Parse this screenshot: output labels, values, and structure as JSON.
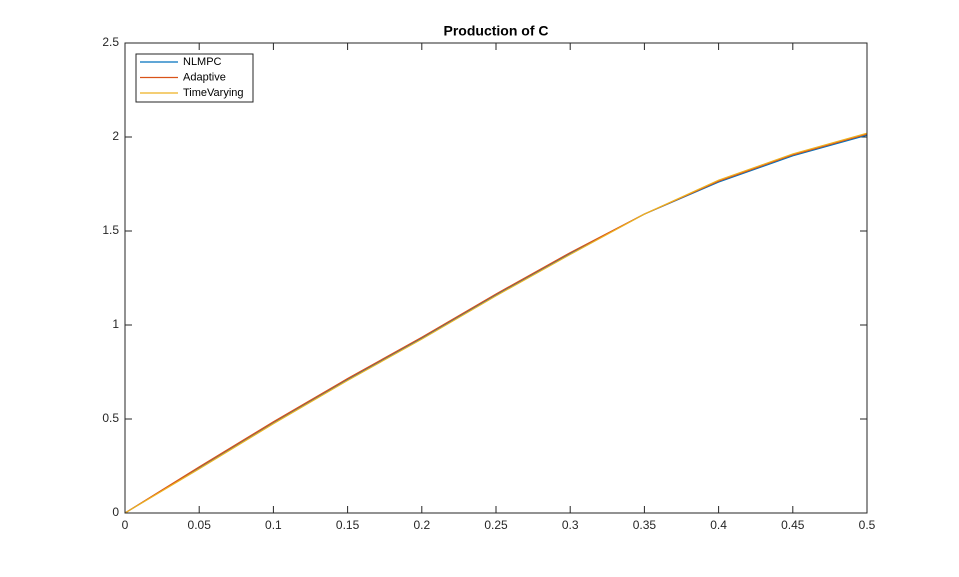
{
  "chart_data": {
    "type": "line",
    "title": "Production of C",
    "x": [
      0,
      0.05,
      0.1,
      0.15,
      0.2,
      0.25,
      0.3,
      0.35,
      0.4,
      0.45,
      0.5
    ],
    "series": [
      {
        "name": "NLMPC",
        "color": "#0072BD",
        "values": [
          0,
          0.24,
          0.48,
          0.71,
          0.93,
          1.16,
          1.38,
          1.59,
          1.76,
          1.9,
          2.01
        ]
      },
      {
        "name": "Adaptive",
        "color": "#D95319",
        "values": [
          0,
          0.245,
          0.485,
          0.715,
          0.935,
          1.165,
          1.385,
          1.59,
          1.765,
          1.905,
          2.015
        ]
      },
      {
        "name": "TimeVarying",
        "color": "#EDB120",
        "values": [
          0,
          0.235,
          0.475,
          0.705,
          0.925,
          1.155,
          1.375,
          1.59,
          1.77,
          1.91,
          2.02
        ]
      }
    ],
    "xlim": [
      0,
      0.5
    ],
    "xticks": [
      0,
      0.05,
      0.1,
      0.15,
      0.2,
      0.25,
      0.3,
      0.35,
      0.4,
      0.45,
      0.5
    ],
    "ylim": [
      0,
      2.5
    ],
    "yticks": [
      0,
      0.5,
      1,
      1.5,
      2,
      2.5
    ],
    "grid": false,
    "legend": "top-left"
  }
}
